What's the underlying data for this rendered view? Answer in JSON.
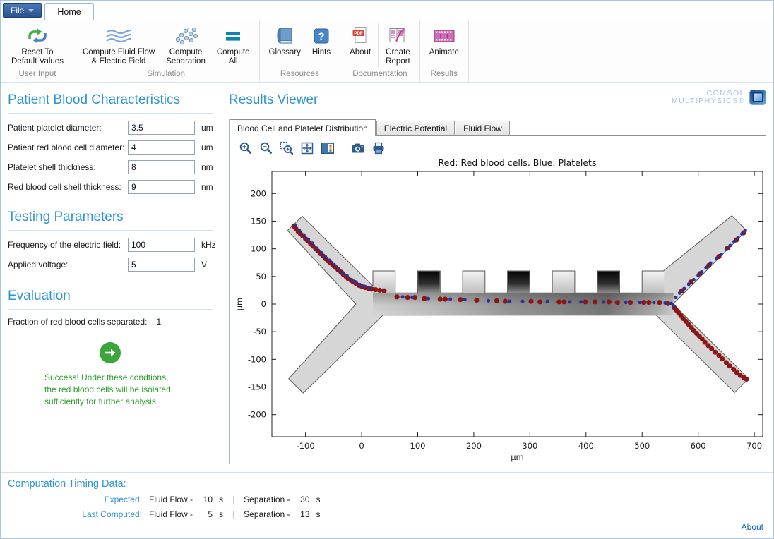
{
  "app": {
    "file_button": "File",
    "home_tab": "Home"
  },
  "ribbon": {
    "groups": {
      "user_input": "User Input",
      "simulation": "Simulation",
      "resources": "Resources",
      "documentation": "Documentation",
      "results": "Results"
    },
    "buttons": {
      "reset": {
        "line1": "Reset To",
        "line2": "Default Values",
        "icon": "reset-arrows-icon"
      },
      "compute_fluid": {
        "line1": "Compute Fluid Flow",
        "line2": "& Electric Field",
        "icon": "fluid-waves-icon"
      },
      "compute_separation": {
        "line1": "Compute",
        "line2": "Separation",
        "icon": "particles-icon"
      },
      "compute_all": {
        "line1": "Compute",
        "line2": "All",
        "icon": "equals-bars-icon"
      },
      "glossary": {
        "line1": "Glossary",
        "icon": "book-icon"
      },
      "hints": {
        "line1": "Hints",
        "icon": "question-icon"
      },
      "about": {
        "line1": "About",
        "icon": "pdf-icon"
      },
      "create_report": {
        "line1": "Create",
        "line2": "Report",
        "icon": "report-quill-icon"
      },
      "animate": {
        "line1": "Animate",
        "icon": "film-strip-icon"
      }
    }
  },
  "left": {
    "blood_heading": "Patient Blood Characteristics",
    "blood_fields": [
      {
        "label": "Patient platelet diameter:",
        "value": "3.5",
        "unit": "um"
      },
      {
        "label": "Patient red blood cell diameter:",
        "value": "4",
        "unit": "um"
      },
      {
        "label": "Platelet shell thickness:",
        "value": "8",
        "unit": "nm"
      },
      {
        "label": "Red blood cell shell thickness:",
        "value": "9",
        "unit": "nm"
      }
    ],
    "testing_heading": "Testing Parameters",
    "testing_fields": [
      {
        "label": "Frequency of the electric field:",
        "value": "100",
        "unit": "kHz"
      },
      {
        "label": "Applied voltage:",
        "value": "5",
        "unit": "V"
      }
    ],
    "evaluation_heading": "Evaluation",
    "fraction_label": "Fraction of red blood cells separated:",
    "fraction_value": "1",
    "success_message": "Success! Under these condtions,\nthe red blood cells will be isolated\nsufficiently for further analysis."
  },
  "results": {
    "heading": "Results Viewer",
    "logo_line1": "COMSOL",
    "logo_line2": "MULTIPHYSICS®",
    "tabs": [
      "Blood Cell and Platelet Distribution",
      "Electric Potential",
      "Fluid Flow"
    ],
    "plot_toolbar_icons": [
      "zoom-in",
      "zoom-out",
      "zoom-box",
      "zoom-extents",
      "legend",
      "snapshot",
      "print"
    ]
  },
  "timing": {
    "heading": "Computation Timing Data:",
    "rows": [
      {
        "label": "Expected:",
        "flow_name": "Fluid Flow -",
        "flow_value": "10",
        "flow_unit": "s",
        "sep_name": "Separation -",
        "sep_value": "30",
        "sep_unit": "s"
      },
      {
        "label": "Last Computed:",
        "flow_name": "Fluid Flow -",
        "flow_value": "5",
        "flow_unit": "s",
        "sep_name": "Separation -",
        "sep_value": "13",
        "sep_unit": "s"
      }
    ],
    "about_link": "About"
  },
  "chart_data": {
    "type": "scatter",
    "title": "Red: Red blood cells. Blue: Platelets",
    "xlabel": "µm",
    "ylabel": "µm",
    "xlim": [
      -160,
      715
    ],
    "ylim": [
      -240,
      240
    ],
    "xticks": [
      -100,
      0,
      100,
      200,
      300,
      400,
      500,
      600,
      700
    ],
    "yticks": [
      -200,
      -150,
      -100,
      -50,
      0,
      50,
      100,
      150,
      200
    ],
    "grid": false,
    "legend_position": "none",
    "colors": {
      "red_cells": "#8c1515",
      "platelets": "#27339b",
      "channel_fill": "#d6d6d6",
      "outline": "#5a5a5a"
    },
    "geometry": {
      "outline": [
        [
          -106,
          159
        ],
        [
          20,
          33
        ],
        [
          20,
          60
        ],
        [
          60,
          60
        ],
        [
          60,
          20
        ],
        [
          100,
          20
        ],
        [
          100,
          60
        ],
        [
          140,
          60
        ],
        [
          140,
          20
        ],
        [
          180,
          20
        ],
        [
          180,
          60
        ],
        [
          220,
          60
        ],
        [
          220,
          20
        ],
        [
          260,
          20
        ],
        [
          260,
          60
        ],
        [
          300,
          60
        ],
        [
          300,
          20
        ],
        [
          340,
          20
        ],
        [
          340,
          60
        ],
        [
          380,
          60
        ],
        [
          380,
          20
        ],
        [
          420,
          20
        ],
        [
          420,
          60
        ],
        [
          460,
          60
        ],
        [
          460,
          20
        ],
        [
          500,
          20
        ],
        [
          500,
          60
        ],
        [
          538,
          60
        ],
        [
          660,
          160
        ],
        [
          686,
          133
        ],
        [
          555,
          0
        ],
        [
          690,
          -135
        ],
        [
          665,
          -160
        ],
        [
          525,
          -20
        ],
        [
          38,
          -20
        ],
        [
          -104,
          -161
        ],
        [
          -130,
          -135
        ],
        [
          -10,
          0
        ],
        [
          -132,
          133
        ]
      ],
      "pillar_width": 40,
      "pillar_y": [
        20,
        60
      ],
      "dark_pillars_x": [
        100,
        260,
        420
      ],
      "light_pillars_x": [
        20,
        180,
        340,
        500
      ],
      "channel_band": {
        "x1": 20,
        "x2": 556,
        "y1": -20,
        "y2": 20
      }
    },
    "series": [
      {
        "name": "red_cells",
        "color": "#8c1515",
        "radius": 4.5,
        "points": [
          [
            -121,
            141
          ],
          [
            -117,
            136
          ],
          [
            -113,
            131
          ],
          [
            -109,
            127
          ],
          [
            -105,
            123
          ],
          [
            -100,
            118
          ],
          [
            -96,
            114
          ],
          [
            -91,
            109
          ],
          [
            -87,
            105
          ],
          [
            -82,
            100
          ],
          [
            -78,
            96
          ],
          [
            -73,
            91
          ],
          [
            -69,
            87
          ],
          [
            -64,
            82
          ],
          [
            -60,
            78
          ],
          [
            -55,
            74
          ],
          [
            -51,
            70
          ],
          [
            -46,
            66
          ],
          [
            -42,
            62
          ],
          [
            -37,
            58
          ],
          [
            -33,
            54
          ],
          [
            -28,
            50
          ],
          [
            -24,
            46
          ],
          [
            -19,
            43
          ],
          [
            -15,
            40
          ],
          [
            -10,
            37
          ],
          [
            -5,
            34
          ],
          [
            0,
            32
          ],
          [
            6,
            30
          ],
          [
            12,
            28
          ],
          [
            18,
            27
          ],
          [
            25,
            26
          ],
          [
            32,
            25
          ],
          [
            40,
            24
          ],
          [
            63,
            13
          ],
          [
            82,
            12
          ],
          [
            95,
            12
          ],
          [
            112,
            10
          ],
          [
            140,
            9
          ],
          [
            149,
            9
          ],
          [
            176,
            8
          ],
          [
            205,
            7
          ],
          [
            241,
            6
          ],
          [
            256,
            5
          ],
          [
            302,
            5
          ],
          [
            318,
            4
          ],
          [
            352,
            4
          ],
          [
            361,
            4
          ],
          [
            399,
            4
          ],
          [
            416,
            4
          ],
          [
            441,
            4
          ],
          [
            456,
            3
          ],
          [
            479,
            3
          ],
          [
            503,
            3
          ],
          [
            512,
            3
          ],
          [
            531,
            3
          ],
          [
            546,
            1
          ],
          [
            571,
            24
          ],
          [
            587,
            40
          ],
          [
            603,
            55
          ],
          [
            619,
            70
          ],
          [
            637,
            86
          ],
          [
            652,
            101
          ],
          [
            668,
            116
          ],
          [
            681,
            129
          ],
          [
            557,
            -6
          ],
          [
            561,
            -11
          ],
          [
            565,
            -16
          ],
          [
            569,
            -21
          ],
          [
            573,
            -26
          ],
          [
            578,
            -31
          ],
          [
            583,
            -37
          ],
          [
            588,
            -43
          ],
          [
            592,
            -48
          ],
          [
            597,
            -53
          ],
          [
            602,
            -58
          ],
          [
            607,
            -63
          ],
          [
            612,
            -69
          ],
          [
            618,
            -75
          ],
          [
            624,
            -81
          ],
          [
            630,
            -87
          ],
          [
            637,
            -93
          ],
          [
            643,
            -99
          ],
          [
            650,
            -106
          ],
          [
            656,
            -112
          ],
          [
            663,
            -118
          ],
          [
            669,
            -124
          ],
          [
            675,
            -129
          ],
          [
            681,
            -133
          ],
          [
            686,
            -136
          ]
        ]
      },
      {
        "name": "platelets",
        "color": "#27339b",
        "radius": 3.2,
        "points": [
          [
            -119,
            143
          ],
          [
            -111,
            133
          ],
          [
            -103,
            125
          ],
          [
            -95,
            117
          ],
          [
            -88,
            110
          ],
          [
            -80,
            101
          ],
          [
            -72,
            93
          ],
          [
            -65,
            86
          ],
          [
            -57,
            79
          ],
          [
            -49,
            71
          ],
          [
            -41,
            64
          ],
          [
            -34,
            57
          ],
          [
            -26,
            51
          ],
          [
            -18,
            44
          ],
          [
            -11,
            40
          ],
          [
            -3,
            35
          ],
          [
            5,
            32
          ],
          [
            14,
            29
          ],
          [
            73,
            13
          ],
          [
            90,
            12
          ],
          [
            119,
            10
          ],
          [
            158,
            9
          ],
          [
            184,
            8
          ],
          [
            226,
            6
          ],
          [
            264,
            5
          ],
          [
            287,
            5
          ],
          [
            331,
            5
          ],
          [
            371,
            4
          ],
          [
            391,
            4
          ],
          [
            431,
            4
          ],
          [
            471,
            3
          ],
          [
            496,
            3
          ],
          [
            521,
            3
          ],
          [
            541,
            2
          ],
          [
            552,
            1
          ],
          [
            560,
            12
          ],
          [
            567,
            20
          ],
          [
            575,
            28
          ],
          [
            583,
            36
          ],
          [
            592,
            44
          ],
          [
            600,
            52
          ],
          [
            606,
            58
          ],
          [
            614,
            66
          ],
          [
            622,
            74
          ],
          [
            633,
            83
          ],
          [
            641,
            90
          ],
          [
            650,
            99
          ],
          [
            657,
            106
          ],
          [
            664,
            113
          ],
          [
            671,
            120
          ],
          [
            678,
            127
          ],
          [
            684,
            133
          ],
          [
            556,
            -3
          ]
        ]
      }
    ]
  }
}
